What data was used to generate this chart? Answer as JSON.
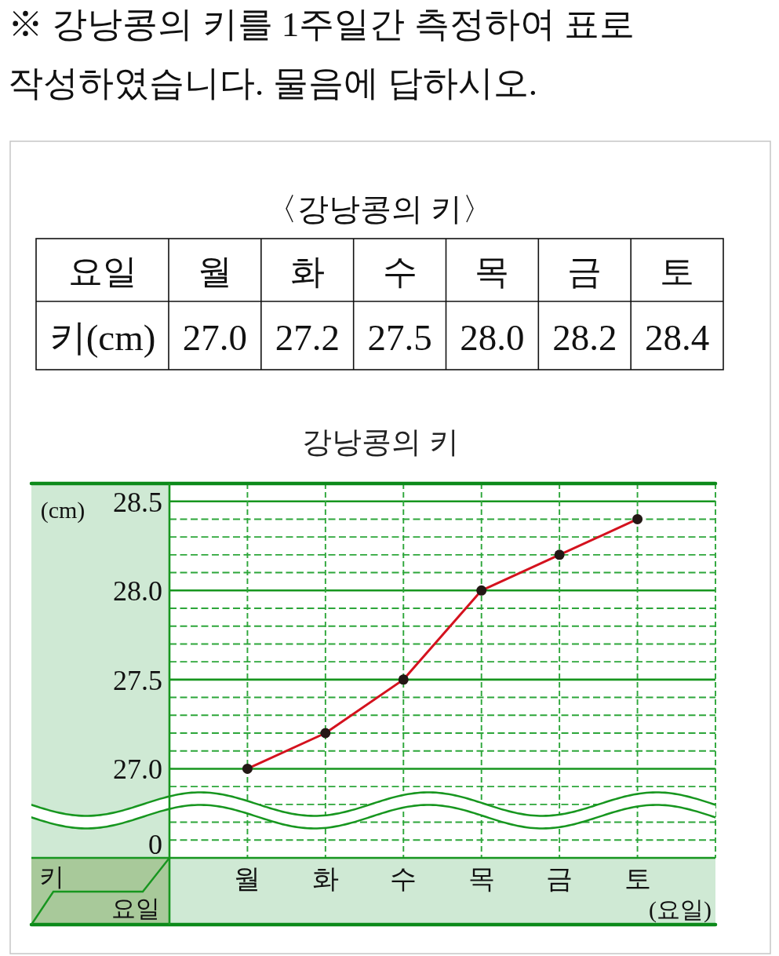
{
  "chart_data": [
    {
      "type": "other",
      "title": "※ 강낭콩의 키를 1주일간 측정하여 표로 작성하였습니다. 물음에 답하시오.",
      "subtitle": "〈강낭콩의 키〉",
      "annotations": [
        "요일",
        "월",
        "화",
        "수",
        "목",
        "금",
        "토",
        "키(cm)",
        "27.0",
        "27.2",
        "27.5",
        "28.0",
        "28.2",
        "28.4"
      ]
    },
    {
      "type": "line",
      "title": "강낭콩의 키",
      "xlabel": "(요일)",
      "ylabel": "(cm)",
      "annotations": [
        "키",
        "요일"
      ],
      "categories": [
        "월",
        "화",
        "수",
        "목",
        "금",
        "토"
      ],
      "values": [
        27.0,
        27.2,
        27.5,
        28.0,
        28.2,
        28.4
      ],
      "color": "#d4121e",
      "ylim": [
        26.5,
        28.6
      ],
      "yticks": [
        {
          "value": 26.6,
          "label": null
        },
        {
          "value": 26.7,
          "label": null
        },
        {
          "value": 26.8,
          "label": null
        },
        {
          "value": 26.9,
          "label": null
        },
        {
          "value": 27,
          "label": "27.0"
        },
        {
          "value": 27.1,
          "label": null
        },
        {
          "value": 27.2,
          "label": null
        },
        {
          "value": 27.3,
          "label": null
        },
        {
          "value": 27.4,
          "label": null
        },
        27.5,
        {
          "value": 27.6,
          "label": null
        },
        {
          "value": 27.7,
          "label": null
        },
        {
          "value": 27.8,
          "label": null
        },
        {
          "value": 27.9,
          "label": null
        },
        {
          "value": 28,
          "label": "28.0"
        },
        {
          "value": 28.1,
          "label": null
        },
        {
          "value": 28.2,
          "label": null
        },
        {
          "value": 28.3,
          "label": null
        },
        {
          "value": 28.4,
          "label": null
        },
        28.5
      ],
      "grid": true,
      "marker": "circle",
      "line_style": "solid"
    },
    {
      "type": "other",
      "annotations": [
        "0"
      ]
    }
  ]
}
